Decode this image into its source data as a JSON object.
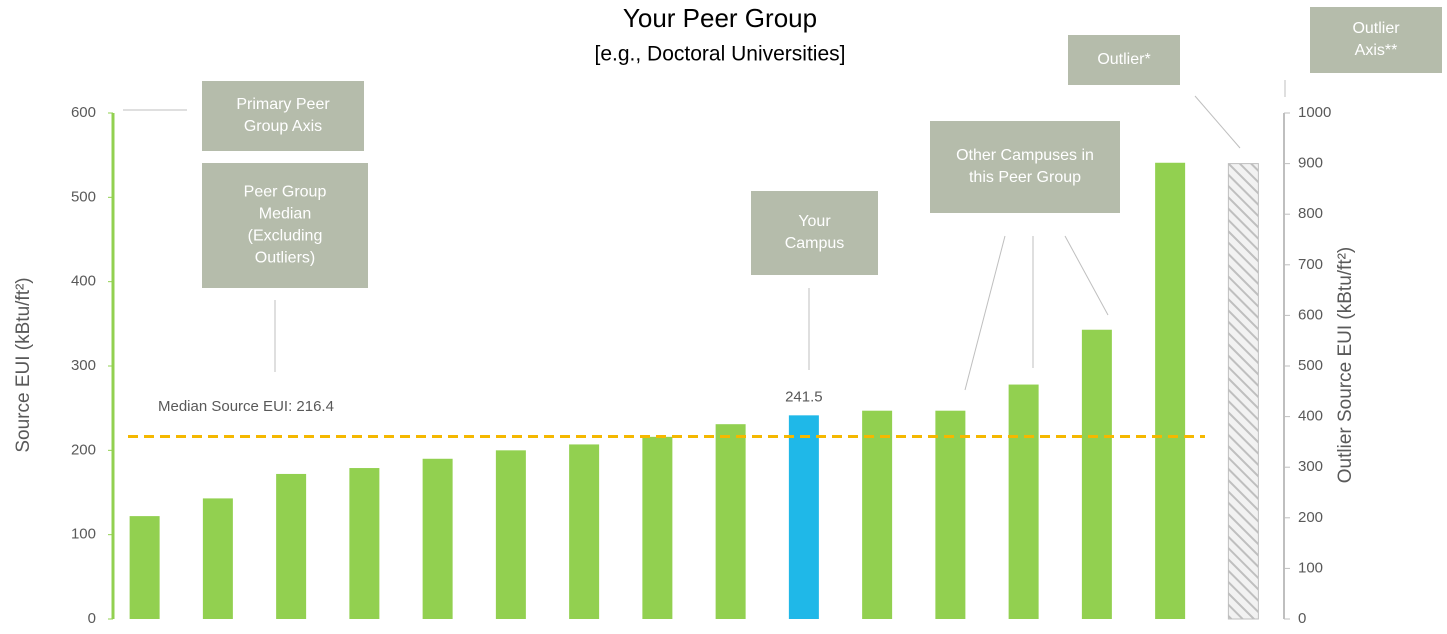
{
  "chart_data": {
    "type": "bar",
    "title": "Your Peer Group",
    "subtitle": "[e.g., Doctoral Universities]",
    "ylabel": "Source EUI (kBtu/ft²)",
    "y2label": "Outlier Source EUI (kBtu/ft²)",
    "categories": [
      null,
      null,
      null,
      null,
      null,
      null,
      null,
      null,
      null,
      null,
      null,
      null,
      null,
      null,
      null,
      null
    ],
    "series": [
      {
        "color": "#92d050",
        "highlight": {
          "index": 9,
          "color": "#1fb8e8"
        },
        "values": [
          122,
          143,
          172,
          179,
          190,
          200,
          207,
          216,
          231,
          241.5,
          247,
          247,
          278,
          343,
          541,
          null
        ]
      },
      {
        "color": "#bfbfbf",
        "hatch": true,
        "axis": "y2",
        "values": [
          null,
          null,
          null,
          null,
          null,
          null,
          null,
          null,
          null,
          null,
          null,
          null,
          null,
          null,
          null,
          900
        ]
      }
    ],
    "data_label_index": 9,
    "median": {
      "value": 216.4,
      "label": "Median Source EUI: 216.4",
      "color": "#f5b800"
    },
    "ylim": [
      0,
      600
    ],
    "yticks": [
      0,
      100,
      200,
      300,
      400,
      500,
      600
    ],
    "y2lim": [
      0,
      1000
    ],
    "y2ticks": [
      0,
      100,
      200,
      300,
      400,
      500,
      600,
      700,
      800,
      900,
      1000
    ],
    "annotations": [
      {
        "lines": [
          "Primary Peer",
          "Group Axis"
        ]
      },
      {
        "lines": [
          "Peer Group",
          "Median",
          "(Excluding",
          "Outliers)"
        ]
      },
      {
        "lines": [
          "Your",
          "Campus"
        ]
      },
      {
        "lines": [
          "Other Campuses in",
          "this Peer Group"
        ]
      },
      {
        "lines": [
          "Outlier*"
        ]
      },
      {
        "lines": [
          "Outlier",
          "Axis**"
        ]
      }
    ]
  }
}
